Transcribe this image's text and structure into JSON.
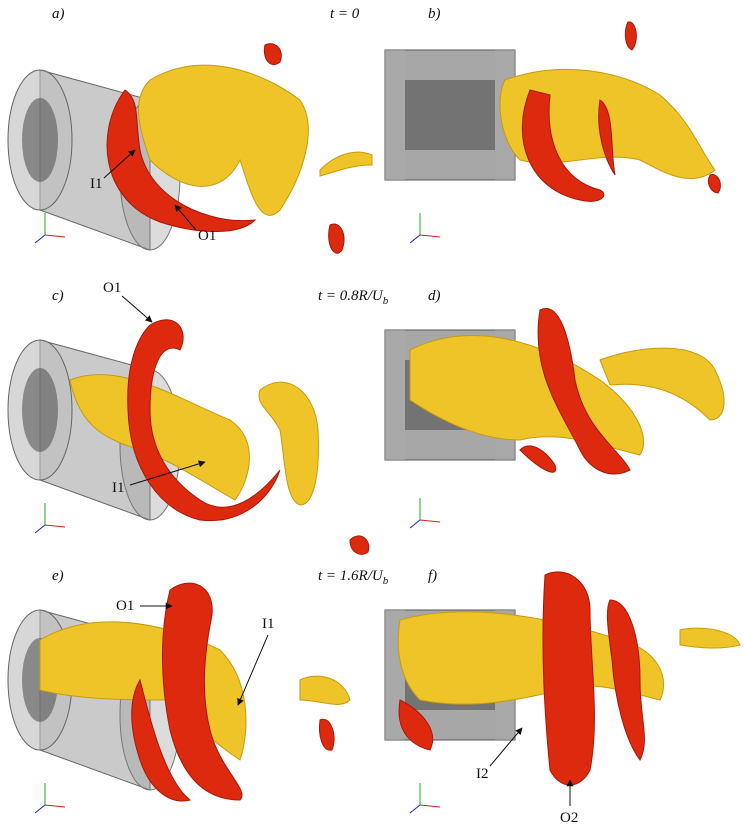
{
  "panels": [
    {
      "label": "a)",
      "time": {
        "main": "t = 0"
      },
      "annotations": [
        "I1",
        "O1"
      ]
    },
    {
      "label": "b)",
      "annotations": []
    },
    {
      "label": "c)",
      "time": {
        "main": "t = 0.8R/U",
        "sub": "b"
      },
      "annotations": [
        "O1",
        "I1"
      ]
    },
    {
      "label": "d)",
      "annotations": []
    },
    {
      "label": "e)",
      "time": {
        "main": "t = 1.6R/U",
        "sub": "b"
      },
      "annotations": [
        "O1",
        "I1"
      ]
    },
    {
      "label": "f)",
      "annotations": [
        "I2",
        "O2"
      ]
    }
  ]
}
